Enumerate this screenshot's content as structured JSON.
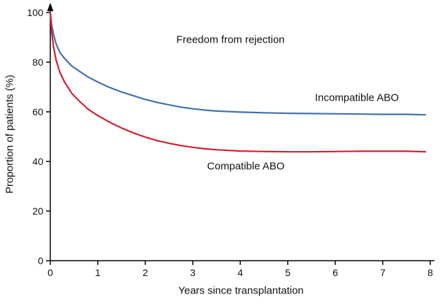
{
  "figure": {
    "title": "Freedom from rejection",
    "x_axis_label": "Years since transplantation",
    "y_axis_label": "Proportion of patients (%)"
  },
  "colors": {
    "axis": "#000000",
    "text": "#111111",
    "background": "#ffffff",
    "incompatible_line": "#4470ad",
    "compatible_line": "#cf2030"
  },
  "chart_data": {
    "type": "line",
    "title": "Freedom from rejection",
    "xlabel": "Years since transplantation",
    "ylabel": "Proportion of patients (%)",
    "xlim": [
      0,
      8
    ],
    "ylim": [
      0,
      100
    ],
    "x_ticks": [
      0,
      1,
      2,
      3,
      4,
      5,
      6,
      7,
      8
    ],
    "y_ticks": [
      0,
      20,
      40,
      60,
      80,
      100
    ],
    "grid": false,
    "legend_position": "inline-labels",
    "series": [
      {
        "name": "Incompatible ABO",
        "color": "#4470ad",
        "x": [
          0,
          0.03,
          0.07,
          0.12,
          0.2,
          0.3,
          0.45,
          0.6,
          0.8,
          1.0,
          1.25,
          1.5,
          1.75,
          2.0,
          2.25,
          2.5,
          2.75,
          3.0,
          3.25,
          3.5,
          4.0,
          4.5,
          5.0,
          5.5,
          6.0,
          6.5,
          7.0,
          7.5,
          7.9
        ],
        "y": [
          100,
          95,
          91,
          87.5,
          84,
          81.5,
          78.5,
          76.5,
          74,
          72,
          69.8,
          68,
          66.5,
          65,
          63.8,
          62.8,
          61.9,
          61.2,
          60.7,
          60.3,
          59.9,
          59.6,
          59.4,
          59.3,
          59.2,
          59.1,
          59.0,
          59.0,
          58.8
        ]
      },
      {
        "name": "Compatible ABO",
        "color": "#cf2030",
        "x": [
          0,
          0.03,
          0.07,
          0.12,
          0.2,
          0.3,
          0.45,
          0.6,
          0.8,
          1.0,
          1.25,
          1.5,
          1.75,
          2.0,
          2.25,
          2.5,
          2.75,
          3.0,
          3.25,
          3.5,
          4.0,
          4.5,
          5.0,
          5.5,
          6.0,
          6.5,
          7.0,
          7.5,
          7.9
        ],
        "y": [
          100,
          92,
          86,
          81,
          76,
          72,
          67.5,
          64.5,
          61,
          58.5,
          55.8,
          53.5,
          51.5,
          49.8,
          48.4,
          47.3,
          46.4,
          45.7,
          45.1,
          44.7,
          44.2,
          44.0,
          43.9,
          43.9,
          44.0,
          44.1,
          44.1,
          44.1,
          43.9
        ]
      }
    ]
  }
}
